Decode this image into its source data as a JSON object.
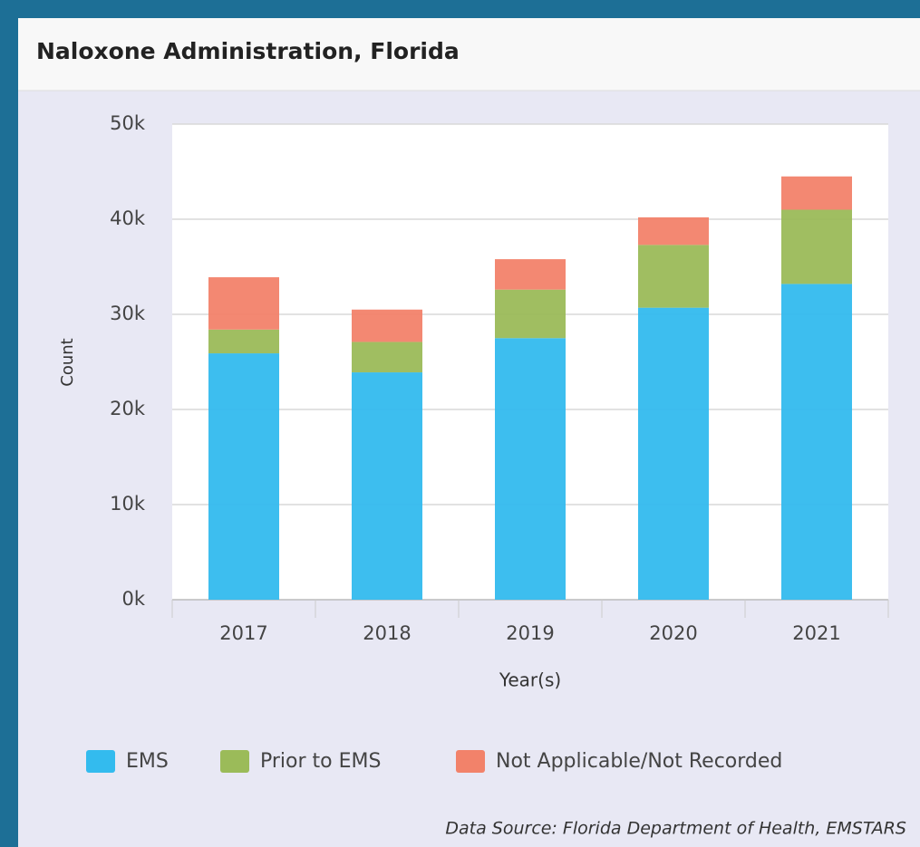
{
  "chart_data": {
    "type": "stacked_bar",
    "title": "Naloxone Administration, Florida",
    "y_label": "Count",
    "x_label": "Year(s)",
    "source": "Data Source: Florida Department of Health, EMSTARS",
    "categories": [
      "2017",
      "2018",
      "2019",
      "2020",
      "2021"
    ],
    "series": [
      {
        "name": "EMS",
        "color": "#33bbee",
        "values": [
          25900,
          23900,
          27500,
          30700,
          33200
        ]
      },
      {
        "name": "Prior to EMS",
        "color": "#9bbb59",
        "values": [
          2500,
          3200,
          5100,
          6600,
          7800
        ]
      },
      {
        "name": "Not Applicable/Not Recorded",
        "color": "#f2826a",
        "values": [
          5500,
          3400,
          3200,
          2900,
          3500
        ]
      }
    ],
    "ylim": [
      0,
      50000
    ],
    "yticks": [
      {
        "value": 0,
        "label": "0k"
      },
      {
        "value": 10000,
        "label": "10k"
      },
      {
        "value": 20000,
        "label": "20k"
      },
      {
        "value": 30000,
        "label": "30k"
      },
      {
        "value": 40000,
        "label": "40k"
      },
      {
        "value": 50000,
        "label": "50k"
      }
    ],
    "grid": true,
    "legend": "bottom"
  }
}
